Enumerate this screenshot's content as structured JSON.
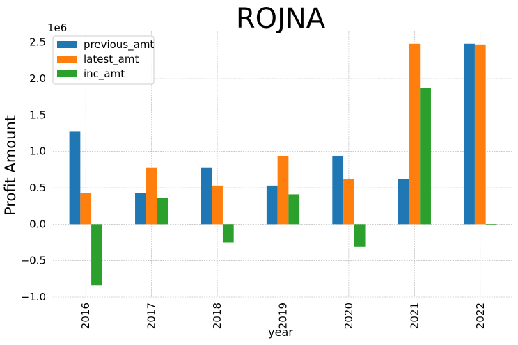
{
  "chart_data": {
    "type": "bar",
    "title": "ROJNA",
    "xlabel": "year",
    "ylabel": "Profit Amount",
    "y_offset_label": "1e6",
    "categories": [
      "2016",
      "2017",
      "2018",
      "2019",
      "2020",
      "2021",
      "2022"
    ],
    "series": [
      {
        "name": "previous_amt",
        "color": "#1f77b4",
        "values": [
          1270000,
          430000,
          780000,
          530000,
          940000,
          620000,
          2480000
        ]
      },
      {
        "name": "latest_amt",
        "color": "#ff7f0e",
        "values": [
          430000,
          780000,
          530000,
          940000,
          620000,
          2480000,
          2470000
        ]
      },
      {
        "name": "inc_amt",
        "color": "#2ca02c",
        "values": [
          -840000,
          360000,
          -250000,
          410000,
          -310000,
          1870000,
          -10000
        ]
      }
    ],
    "ylim": [
      -1000000,
      2650000
    ],
    "yticks": [
      -1000000,
      -500000,
      0,
      500000,
      1000000,
      1500000,
      2000000,
      2500000
    ],
    "ytick_labels": [
      "−1.0",
      "−0.5",
      "0.0",
      "0.5",
      "1.0",
      "1.5",
      "2.0",
      "2.5"
    ],
    "grid": true,
    "legend_position": "top-left"
  }
}
